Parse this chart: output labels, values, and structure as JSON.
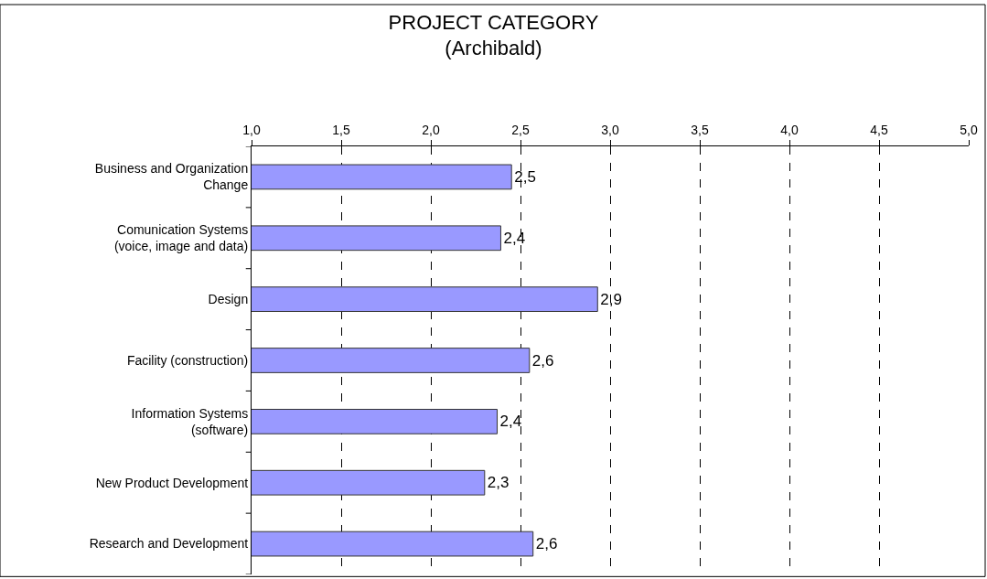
{
  "chart_data": {
    "type": "bar",
    "orientation": "horizontal",
    "title": "PROJECT CATEGORY\n(Archibald)",
    "categories": [
      "Business and Organization\nChange",
      "Comunication Systems\n(voice, image and data)",
      "Design",
      "Facility (construction)",
      "Information Systems\n(software)",
      "New Product Development",
      "Research and Development"
    ],
    "values": [
      2.45,
      2.39,
      2.93,
      2.55,
      2.37,
      2.3,
      2.57
    ],
    "value_labels": [
      "2,5",
      "2,4",
      "2,9",
      "2,6",
      "2,4",
      "2,3",
      "2,6"
    ],
    "color": "#9999ff",
    "xlim": [
      1.0,
      5.0
    ],
    "xticks": [
      {
        "value": 1.0,
        "label": "1,0"
      },
      {
        "value": 1.5,
        "label": "1,5"
      },
      {
        "value": 2.0,
        "label": "2,0"
      },
      {
        "value": 2.5,
        "label": "2,5"
      },
      {
        "value": 3.0,
        "label": "3,0"
      },
      {
        "value": 3.5,
        "label": "3,5"
      },
      {
        "value": 4.0,
        "label": "4,0"
      },
      {
        "value": 4.5,
        "label": "4,5"
      },
      {
        "value": 5.0,
        "label": "5,0"
      }
    ],
    "grid": "x",
    "legend": false
  }
}
